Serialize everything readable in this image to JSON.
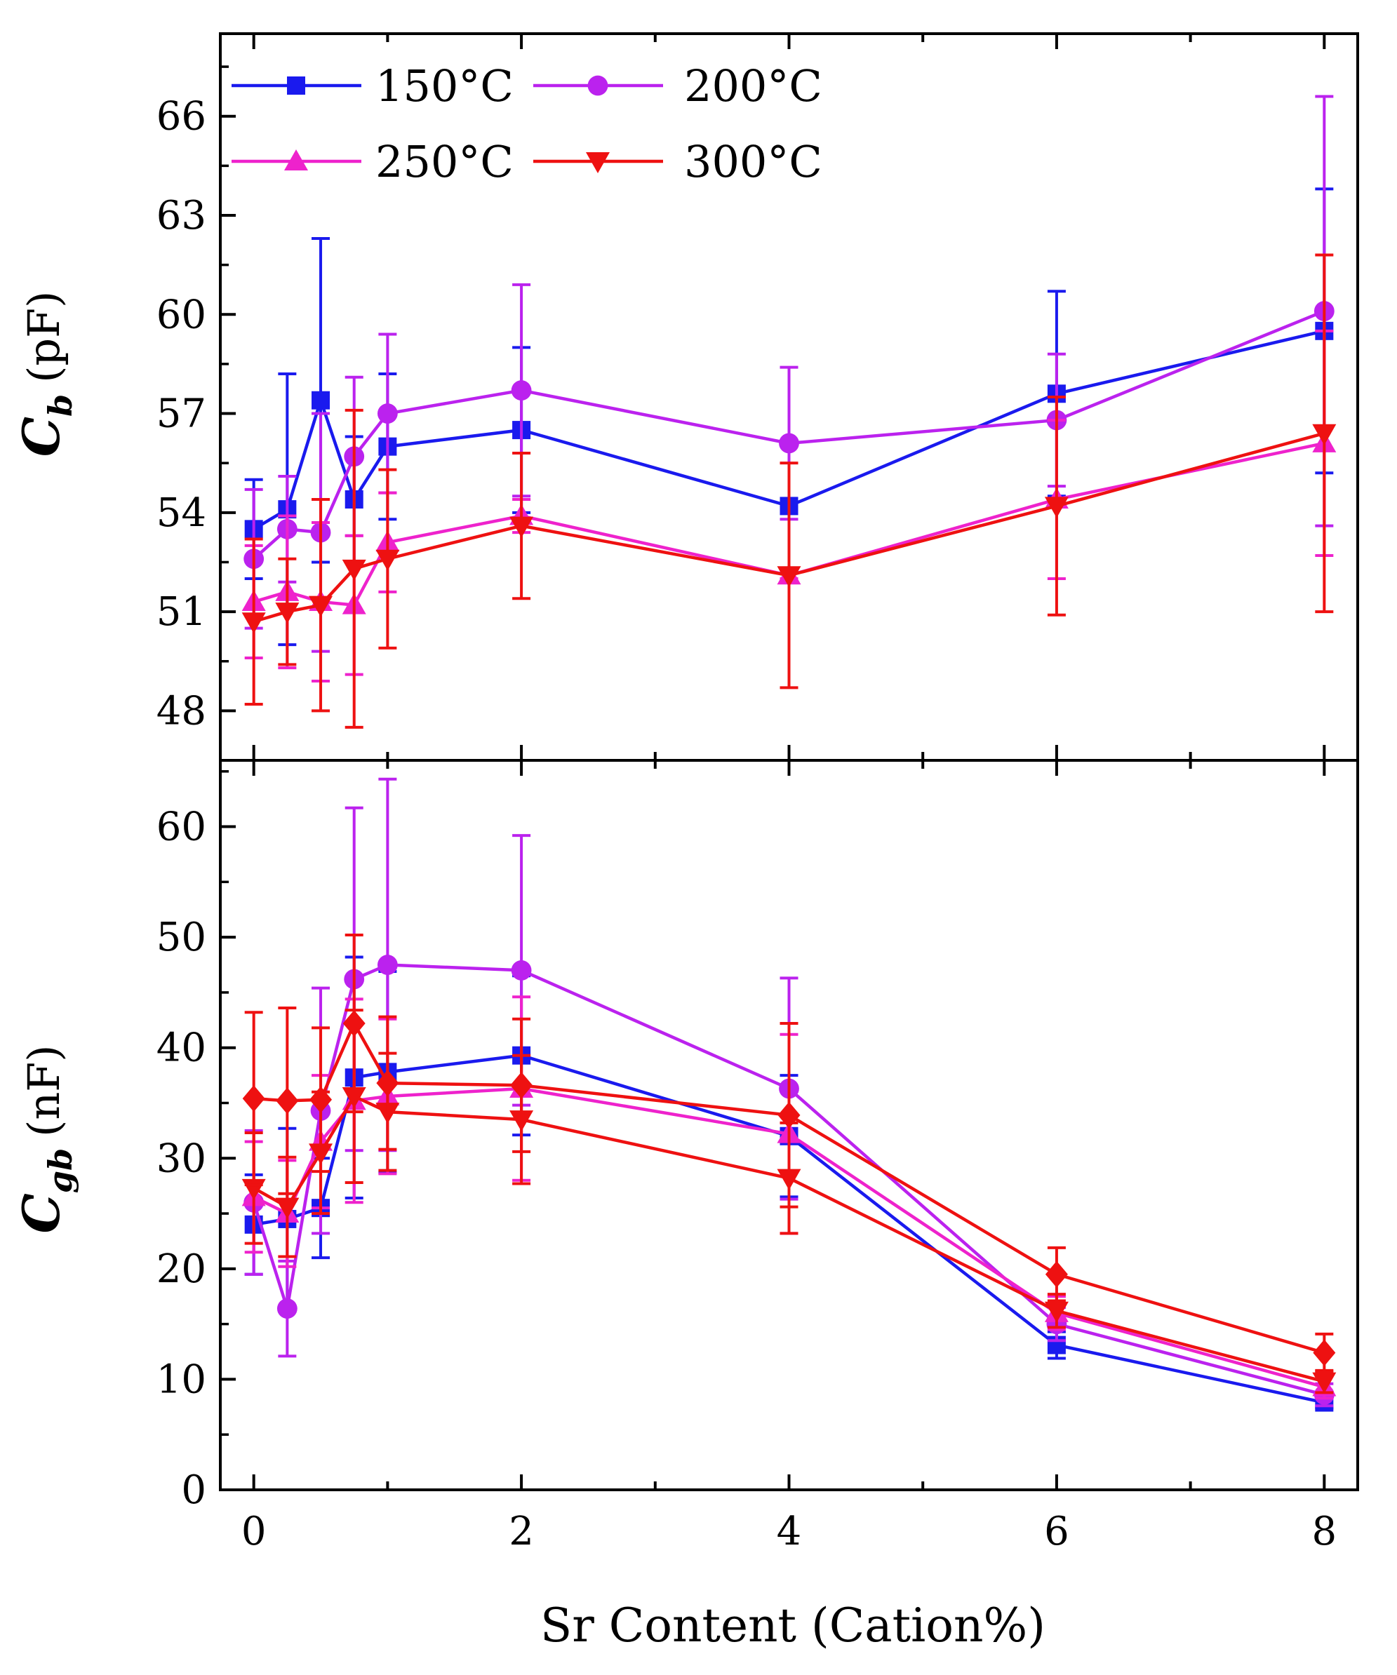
{
  "chart_data": [
    {
      "type": "line",
      "id": "top",
      "ylabel": {
        "symbol": "C",
        "subscript": "b",
        "unit": "(pF)"
      },
      "xlim": [
        -0.25,
        8.25
      ],
      "ylim": [
        46.5,
        68.5
      ],
      "yticks": [
        48,
        51,
        54,
        57,
        60,
        63,
        66
      ],
      "ytick_labels": [
        "48",
        "51",
        "54",
        "57",
        "60",
        "63",
        "66"
      ],
      "legend": {
        "position": "top-left",
        "entries": [
          {
            "series": 0,
            "label": "150°C"
          },
          {
            "series": 1,
            "label": "200°C"
          },
          {
            "series": 2,
            "label": "250°C"
          },
          {
            "series": 3,
            "label": "300°C"
          }
        ]
      },
      "series": [
        {
          "name": "150°C",
          "color": "#1a1aee",
          "marker": "square",
          "x": [
            0,
            0.25,
            0.5,
            0.75,
            1,
            2,
            4,
            6,
            8
          ],
          "y": [
            53.5,
            54.1,
            57.4,
            54.4,
            56.0,
            56.5,
            54.2,
            57.6,
            59.5
          ],
          "err": [
            1.5,
            4.1,
            4.9,
            1.9,
            2.2,
            2.5,
            0.2,
            3.1,
            4.3
          ]
        },
        {
          "name": "200°C",
          "color": "#bb22ee",
          "marker": "circle",
          "x": [
            0,
            0.25,
            0.5,
            0.75,
            1,
            2,
            4,
            6,
            8
          ],
          "y": [
            52.6,
            53.5,
            53.4,
            55.7,
            57.0,
            57.7,
            56.1,
            56.8,
            60.1
          ],
          "err": [
            2.1,
            1.6,
            3.6,
            2.4,
            2.4,
            3.2,
            2.3,
            2.0,
            6.5
          ]
        },
        {
          "name": "250°C",
          "color": "#ee22cc",
          "marker": "triangle-up",
          "x": [
            0,
            0.25,
            0.5,
            0.75,
            1,
            2,
            4,
            6,
            8
          ],
          "y": [
            51.3,
            51.6,
            51.3,
            51.2,
            53.1,
            53.9,
            52.1,
            54.4,
            56.1
          ],
          "err": [
            1.7,
            2.3,
            2.4,
            2.1,
            1.5,
            0.5,
            0.1,
            2.4,
            3.4
          ]
        },
        {
          "name": "300°C",
          "color": "#ee1111",
          "marker": "triangle-down",
          "x": [
            0,
            0.25,
            0.5,
            0.75,
            1,
            2,
            4,
            6,
            8
          ],
          "y": [
            50.7,
            51.0,
            51.2,
            52.3,
            52.6,
            53.6,
            52.1,
            54.2,
            56.4
          ],
          "err": [
            2.5,
            1.6,
            3.2,
            4.8,
            2.7,
            2.2,
            3.4,
            3.3,
            5.4
          ]
        }
      ]
    },
    {
      "type": "line",
      "id": "bottom",
      "ylabel": {
        "symbol": "C",
        "subscript": "gb",
        "unit": "(nF)"
      },
      "xlabel": "Sr Content (Cation%)",
      "xlim": [
        -0.25,
        8.25
      ],
      "ylim": [
        0,
        66
      ],
      "xticks": [
        0,
        2,
        4,
        6,
        8
      ],
      "xtick_labels": [
        "0",
        "2",
        "4",
        "6",
        "8"
      ],
      "yticks": [
        0,
        10,
        20,
        30,
        40,
        50,
        60
      ],
      "ytick_labels": [
        "0",
        "10",
        "20",
        "30",
        "40",
        "50",
        "60"
      ],
      "series": [
        {
          "name": "150°C",
          "color": "#1a1aee",
          "marker": "square",
          "x": [
            0,
            0.25,
            0.5,
            0.75,
            1,
            2,
            4,
            6,
            8
          ],
          "y": [
            24.0,
            24.5,
            25.5,
            37.3,
            37.8,
            39.3,
            32.0,
            13.1,
            7.9
          ],
          "err": [
            4.5,
            8.2,
            4.5,
            10.9,
            9.1,
            7.2,
            5.5,
            1.2,
            0.5
          ]
        },
        {
          "name": "200°C",
          "color": "#bb22ee",
          "marker": "circle",
          "x": [
            0,
            0.25,
            0.5,
            0.75,
            1,
            2,
            4,
            6,
            8
          ],
          "y": [
            26.0,
            16.4,
            34.3,
            46.2,
            47.5,
            47.0,
            36.3,
            15.0,
            8.6
          ],
          "err": [
            6.5,
            4.3,
            11.1,
            15.5,
            16.8,
            12.2,
            10.0,
            1.5,
            1.0
          ]
        },
        {
          "name": "250°C",
          "color": "#ee22cc",
          "marker": "triangle-up",
          "x": [
            0,
            0.25,
            0.5,
            0.75,
            1,
            2,
            4,
            6,
            8
          ],
          "y": [
            26.5,
            25.0,
            31.5,
            35.2,
            35.6,
            36.3,
            32.2,
            16.0,
            9.3
          ],
          "err": [
            5.0,
            4.8,
            6.0,
            9.2,
            7.0,
            8.3,
            9.0,
            1.5,
            1.0
          ]
        },
        {
          "name": "300°C",
          "color": "#ee1111",
          "marker": "triangle-down",
          "x": [
            0,
            0.25,
            0.5,
            0.75,
            1,
            2,
            4,
            6,
            8
          ],
          "y": [
            27.3,
            25.6,
            30.5,
            35.6,
            34.2,
            33.5,
            28.2,
            16.2,
            9.8
          ],
          "err": [
            5.0,
            4.5,
            5.5,
            7.8,
            5.3,
            5.8,
            5.0,
            1.5,
            1.0
          ]
        },
        {
          "name": "300°C (diamond)",
          "color": "#ee1111",
          "marker": "diamond",
          "x": [
            0,
            0.25,
            0.5,
            0.75,
            1,
            2,
            4,
            6,
            8
          ],
          "y": [
            35.4,
            35.2,
            35.3,
            42.2,
            36.8,
            36.6,
            33.9,
            19.5,
            12.4
          ],
          "err": [
            7.8,
            8.4,
            6.5,
            8.0,
            6.0,
            6.0,
            8.3,
            2.4,
            1.7
          ]
        }
      ]
    }
  ]
}
